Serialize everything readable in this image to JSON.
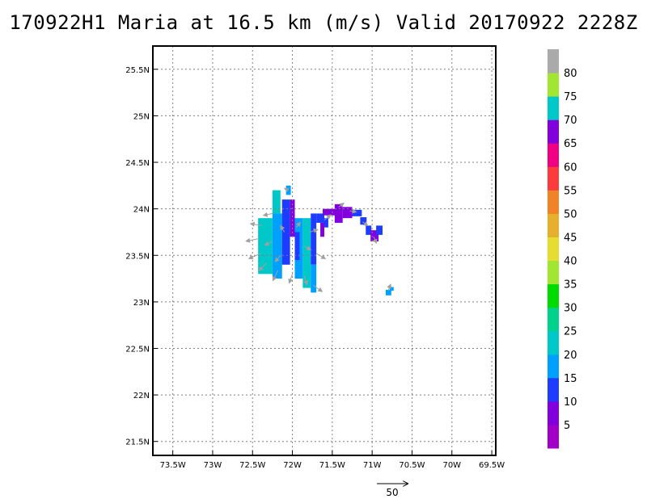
{
  "title": "170922H1 Maria at 16.5 km (m/s) Valid 20170922 2228Z",
  "map": {
    "lon_range": [
      -73.75,
      -69.45
    ],
    "lat_range": [
      21.35,
      25.75
    ],
    "lon_ticks": [
      {
        "value": -73.5,
        "label": "73.5W"
      },
      {
        "value": -73.0,
        "label": "73W"
      },
      {
        "value": -72.5,
        "label": "72.5W"
      },
      {
        "value": -72.0,
        "label": "72W"
      },
      {
        "value": -71.5,
        "label": "71.5W"
      },
      {
        "value": -71.0,
        "label": "71W"
      },
      {
        "value": -70.5,
        "label": "70.5W"
      },
      {
        "value": -70.0,
        "label": "70W"
      },
      {
        "value": -69.5,
        "label": "69.5W"
      }
    ],
    "lat_ticks": [
      {
        "value": 21.5,
        "label": "21.5N"
      },
      {
        "value": 22.0,
        "label": "22N"
      },
      {
        "value": 22.5,
        "label": "22.5N"
      },
      {
        "value": 23.0,
        "label": "23N"
      },
      {
        "value": 23.5,
        "label": "23.5N"
      },
      {
        "value": 24.0,
        "label": "24N"
      },
      {
        "value": 24.5,
        "label": "24.5N"
      },
      {
        "value": 25.0,
        "label": "25N"
      },
      {
        "value": 25.5,
        "label": "25.5N"
      }
    ],
    "grid": true
  },
  "colorbar": {
    "colors": [
      "#a000c8",
      "#8200dc",
      "#1e3cff",
      "#00a0ff",
      "#00c8c8",
      "#00d28c",
      "#00dc00",
      "#a0e632",
      "#e6dc32",
      "#e6af2d",
      "#f08228",
      "#fa3c3c",
      "#f00082",
      "#8200dc",
      "#00c8c8",
      "#a0e632",
      "#aaaaaa"
    ],
    "labels": [
      "5",
      "10",
      "15",
      "20",
      "25",
      "30",
      "35",
      "40",
      "45",
      "50",
      "55",
      "60",
      "65",
      "70",
      "75",
      "80"
    ]
  },
  "wind_field": {
    "cell_deg": [
      0.05,
      0.05
    ],
    "cells": [
      {
        "lon": -72.25,
        "lat": 23.95,
        "w": 0.1,
        "h": 0.25,
        "color": "#00c8c8"
      },
      {
        "lon": -72.08,
        "lat": 24.15,
        "w": 0.06,
        "h": 0.1,
        "color": "#00a0ff"
      },
      {
        "lon": -72.43,
        "lat": 23.3,
        "w": 0.18,
        "h": 0.6,
        "color": "#00c8c8"
      },
      {
        "lon": -72.25,
        "lat": 23.25,
        "w": 0.12,
        "h": 0.7,
        "color": "#00a0ff"
      },
      {
        "lon": -72.13,
        "lat": 23.4,
        "w": 0.1,
        "h": 0.7,
        "color": "#1e3cff"
      },
      {
        "lon": -72.03,
        "lat": 23.7,
        "w": 0.06,
        "h": 0.4,
        "color": "#8200dc"
      },
      {
        "lon": -71.97,
        "lat": 23.25,
        "w": 0.1,
        "h": 0.65,
        "color": "#00a0ff"
      },
      {
        "lon": -71.97,
        "lat": 23.45,
        "w": 0.06,
        "h": 0.3,
        "color": "#1e3cff"
      },
      {
        "lon": -71.87,
        "lat": 23.15,
        "w": 0.1,
        "h": 0.75,
        "color": "#00c8c8"
      },
      {
        "lon": -71.77,
        "lat": 23.4,
        "w": 0.07,
        "h": 0.55,
        "color": "#1e3cff"
      },
      {
        "lon": -71.77,
        "lat": 23.1,
        "w": 0.07,
        "h": 0.3,
        "color": "#00a0ff"
      },
      {
        "lon": -71.7,
        "lat": 23.85,
        "w": 0.1,
        "h": 0.1,
        "color": "#1e3cff"
      },
      {
        "lon": -71.65,
        "lat": 23.7,
        "w": 0.05,
        "h": 0.15,
        "color": "#8200dc"
      },
      {
        "lon": -71.6,
        "lat": 23.8,
        "w": 0.05,
        "h": 0.1,
        "color": "#1e3cff"
      },
      {
        "lon": -71.62,
        "lat": 23.93,
        "w": 0.17,
        "h": 0.07,
        "color": "#8200dc"
      },
      {
        "lon": -71.47,
        "lat": 23.85,
        "w": 0.1,
        "h": 0.2,
        "color": "#8200dc"
      },
      {
        "lon": -71.37,
        "lat": 23.9,
        "w": 0.12,
        "h": 0.12,
        "color": "#8200dc"
      },
      {
        "lon": -71.25,
        "lat": 23.92,
        "w": 0.12,
        "h": 0.07,
        "color": "#1e3cff"
      },
      {
        "lon": -71.15,
        "lat": 23.83,
        "w": 0.08,
        "h": 0.08,
        "color": "#1e3cff"
      },
      {
        "lon": -71.08,
        "lat": 23.72,
        "w": 0.07,
        "h": 0.1,
        "color": "#1e3cff"
      },
      {
        "lon": -71.02,
        "lat": 23.65,
        "w": 0.1,
        "h": 0.12,
        "color": "#8200dc"
      },
      {
        "lon": -70.95,
        "lat": 23.72,
        "w": 0.08,
        "h": 0.1,
        "color": "#1e3cff"
      },
      {
        "lon": -70.83,
        "lat": 23.07,
        "w": 0.07,
        "h": 0.06,
        "color": "#00a0ff"
      },
      {
        "lon": -70.78,
        "lat": 23.12,
        "w": 0.05,
        "h": 0.04,
        "color": "#00a0ff"
      }
    ]
  },
  "wind_vectors": {
    "color": "#a0a0a0",
    "items": [
      {
        "lon": -72.05,
        "lat": 24.2,
        "u": -6,
        "v": 3
      },
      {
        "lon": -72.25,
        "lat": 23.95,
        "u": -14,
        "v": -3
      },
      {
        "lon": -72.38,
        "lat": 23.82,
        "u": -18,
        "v": 3
      },
      {
        "lon": -72.42,
        "lat": 23.68,
        "u": -20,
        "v": -4
      },
      {
        "lon": -72.4,
        "lat": 23.52,
        "u": -18,
        "v": -8
      },
      {
        "lon": -72.32,
        "lat": 23.42,
        "u": -12,
        "v": -12
      },
      {
        "lon": -72.18,
        "lat": 23.34,
        "u": -8,
        "v": -16
      },
      {
        "lon": -72.0,
        "lat": 23.3,
        "u": -5,
        "v": -14
      },
      {
        "lon": -71.85,
        "lat": 23.28,
        "u": 4,
        "v": -14
      },
      {
        "lon": -71.74,
        "lat": 23.18,
        "u": 14,
        "v": -10
      },
      {
        "lon": -72.25,
        "lat": 23.65,
        "u": -12,
        "v": -6
      },
      {
        "lon": -72.15,
        "lat": 23.5,
        "u": -8,
        "v": -10
      },
      {
        "lon": -72.1,
        "lat": 23.75,
        "u": -6,
        "v": 10
      },
      {
        "lon": -71.95,
        "lat": 23.8,
        "u": 6,
        "v": 8
      },
      {
        "lon": -71.85,
        "lat": 23.6,
        "u": 10,
        "v": -6
      },
      {
        "lon": -71.78,
        "lat": 23.75,
        "u": 12,
        "v": 4
      },
      {
        "lon": -71.7,
        "lat": 23.52,
        "u": 14,
        "v": -8
      },
      {
        "lon": -71.6,
        "lat": 23.88,
        "u": 10,
        "v": 8
      },
      {
        "lon": -71.42,
        "lat": 24.02,
        "u": 8,
        "v": 6
      },
      {
        "lon": -71.28,
        "lat": 23.98,
        "u": 10,
        "v": -2
      },
      {
        "lon": -71.12,
        "lat": 23.86,
        "u": 8,
        "v": -6
      },
      {
        "lon": -70.98,
        "lat": 23.7,
        "u": 4,
        "v": -10
      },
      {
        "lon": -70.8,
        "lat": 23.12,
        "u": 4,
        "v": 10
      }
    ]
  },
  "reference_vector": {
    "label": "50",
    "value": 50
  }
}
